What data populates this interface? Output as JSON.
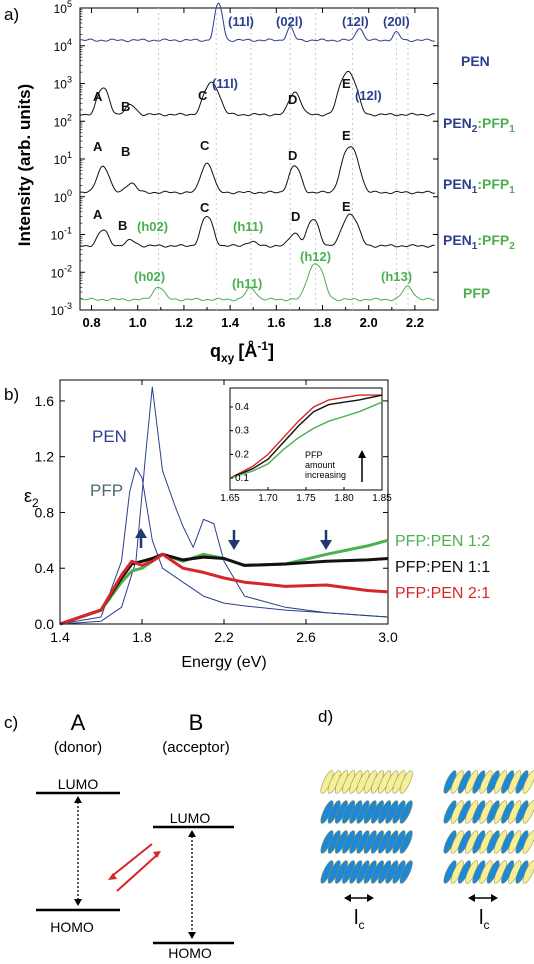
{
  "colors": {
    "pen": "#2b3f8f",
    "pfp": "#4caf50",
    "black": "#111111",
    "red": "#d62728",
    "arrow_dark": "#1f3a6e",
    "grid": "#c8c8c8"
  },
  "panel_a": {
    "label": "a)",
    "ylabel": "Intensity (arb. units)",
    "xlabel_main": "q",
    "xlabel_sub": "xy",
    "xlabel_unit": "[Å",
    "xlabel_exp": "-1",
    "xlabel_end": "]",
    "xticks": [
      "0.8",
      "1.0",
      "1.2",
      "1.4",
      "1.6",
      "1.8",
      "2.0",
      "2.2"
    ],
    "ytick_base": [
      "10",
      "10",
      "10",
      "10",
      "10",
      "10",
      "10",
      "10",
      "10"
    ],
    "ytick_exp": [
      "5",
      "4",
      "3",
      "2",
      "1",
      "0",
      "-1",
      "-2",
      "-3"
    ],
    "gridlines_q": [
      1.09,
      1.34,
      1.49,
      1.66,
      1.77,
      1.93,
      2.12,
      2.17
    ],
    "curve_labels": [
      {
        "text": "PEN",
        "color": "pen"
      },
      {
        "a": "PEN",
        "a_sub": "2",
        "b": ":PFP",
        "b_sub": "1"
      },
      {
        "a": "PEN",
        "a_sub": "1",
        "b": ":PFP",
        "b_sub": "1"
      },
      {
        "a": "PEN",
        "a_sub": "1",
        "b": ":PFP",
        "b_sub": "2"
      },
      {
        "text": "PFP",
        "color": "pfp"
      }
    ],
    "peak_labels_pen": [
      "(11l)",
      "(02l)",
      "(12l)",
      "(20l)"
    ],
    "peak_labels_mix2": [
      "A",
      "B",
      "C",
      "(11l)",
      "D",
      "E",
      "(12l)"
    ],
    "peak_labels_mix1": [
      "A",
      "B",
      "C",
      "D",
      "E"
    ],
    "peak_labels_mixp": [
      "A",
      "B",
      "(h02)",
      "C",
      "(h11)",
      "D",
      "E"
    ],
    "peak_labels_pfp": [
      "(h02)",
      "(h11)",
      "(h12)",
      "(h13)"
    ]
  },
  "panel_b": {
    "label": "b)",
    "ylabel": "ε",
    "ylabel_sub": "2",
    "xlabel": "Energy (eV)",
    "xticks": [
      "1.4",
      "1.8",
      "2.2",
      "2.6",
      "3.0"
    ],
    "yticks": [
      "0.0",
      "0.4",
      "0.8",
      "1.2",
      "1.6"
    ],
    "pen_label": "PEN",
    "pfp_label": "PFP",
    "legend": [
      "PFP:PEN 1:2",
      "PFP:PEN 1:1",
      "PFP:PEN 2:1"
    ],
    "inset": {
      "xticks": [
        "1.65",
        "1.70",
        "1.75",
        "1.80",
        "1.85"
      ],
      "yticks": [
        "0.1",
        "0.2",
        "0.3",
        "0.4"
      ],
      "annotation": [
        "PFP",
        "amount",
        "increasing"
      ]
    }
  },
  "panel_c": {
    "label": "c)",
    "a_title": "A",
    "a_sub": "(donor)",
    "b_title": "B",
    "b_sub": "(acceptor)",
    "lumo": "LUMO",
    "homo": "HOMO"
  },
  "panel_d": {
    "label": "d)",
    "lc_main": "l",
    "lc_sub": "c"
  },
  "chart_data": [
    {
      "type": "line",
      "xlabel": "q_xy [Å^-1]",
      "ylabel": "Intensity (arb. units)",
      "yscale": "log",
      "xlim": [
        0.75,
        2.3
      ],
      "ylim": [
        0.001,
        100000
      ],
      "series": [
        {
          "name": "PEN",
          "baseline": 14000,
          "peaks": [
            [
              1.35,
              9
            ],
            [
              1.66,
              2.2
            ],
            [
              1.96,
              2.2
            ],
            [
              2.12,
              1.6
            ]
          ]
        },
        {
          "name": "PEN2:PFP1",
          "baseline": 150,
          "peaks": [
            [
              0.85,
              5
            ],
            [
              0.97,
              1.8
            ],
            [
              1.32,
              7
            ],
            [
              1.68,
              4
            ],
            [
              1.91,
              14
            ]
          ]
        },
        {
          "name": "PEN1:PFP1",
          "baseline": 1.3,
          "peaks": [
            [
              0.85,
              5
            ],
            [
              0.97,
              1.8
            ],
            [
              1.3,
              6
            ],
            [
              1.68,
              5
            ],
            [
              1.92,
              16
            ]
          ]
        },
        {
          "name": "PEN1:PFP2",
          "baseline": 0.05,
          "peaks": [
            [
              0.85,
              2.6
            ],
            [
              0.97,
              1.4
            ],
            [
              1.3,
              6
            ],
            [
              1.49,
              1.3
            ],
            [
              1.68,
              2.2
            ],
            [
              1.76,
              5
            ],
            [
              1.92,
              7
            ]
          ]
        },
        {
          "name": "PFP",
          "baseline": 0.0019,
          "peaks": [
            [
              1.09,
              2.2
            ],
            [
              1.49,
              2
            ],
            [
              1.77,
              9
            ],
            [
              2.17,
              2.2
            ]
          ]
        }
      ]
    },
    {
      "type": "line",
      "xlabel": "Energy (eV)",
      "ylabel": "ε2",
      "xlim": [
        1.4,
        3.0
      ],
      "ylim": [
        0,
        1.75
      ],
      "series": [
        {
          "name": "PEN",
          "x": [
            1.4,
            1.6,
            1.7,
            1.77,
            1.82,
            1.85,
            1.9,
            1.96,
            2.0,
            2.05,
            2.1,
            2.15,
            2.2,
            2.3,
            2.5,
            2.7,
            3.0
          ],
          "y": [
            0.0,
            0.02,
            0.12,
            0.45,
            1.25,
            1.7,
            1.1,
            0.85,
            0.7,
            0.55,
            0.75,
            0.72,
            0.45,
            0.2,
            0.12,
            0.08,
            0.05
          ]
        },
        {
          "name": "PFP",
          "x": [
            1.4,
            1.6,
            1.7,
            1.74,
            1.77,
            1.8,
            1.85,
            1.9,
            2.0,
            2.1,
            2.2,
            2.3,
            2.5,
            2.7,
            3.0
          ],
          "y": [
            0.0,
            0.05,
            0.45,
            0.95,
            1.12,
            1.05,
            0.6,
            0.4,
            0.3,
            0.2,
            0.15,
            0.13,
            0.1,
            0.08,
            0.05
          ]
        },
        {
          "name": "PFP:PEN 1:2",
          "x": [
            1.4,
            1.6,
            1.7,
            1.75,
            1.8,
            1.85,
            1.9,
            2.0,
            2.1,
            2.2,
            2.3,
            2.5,
            2.7,
            2.9,
            3.0
          ],
          "y": [
            0.0,
            0.1,
            0.3,
            0.38,
            0.4,
            0.45,
            0.5,
            0.45,
            0.5,
            0.47,
            0.42,
            0.43,
            0.5,
            0.56,
            0.6
          ]
        },
        {
          "name": "PFP:PEN 1:1",
          "x": [
            1.4,
            1.6,
            1.7,
            1.75,
            1.8,
            1.85,
            1.9,
            2.0,
            2.1,
            2.2,
            2.3,
            2.5,
            2.7,
            2.9,
            3.0
          ],
          "y": [
            0.0,
            0.1,
            0.33,
            0.43,
            0.45,
            0.47,
            0.5,
            0.46,
            0.48,
            0.47,
            0.42,
            0.43,
            0.45,
            0.46,
            0.47
          ]
        },
        {
          "name": "PFP:PEN 2:1",
          "x": [
            1.4,
            1.6,
            1.7,
            1.75,
            1.8,
            1.85,
            1.9,
            2.0,
            2.1,
            2.2,
            2.3,
            2.5,
            2.7,
            2.9,
            3.0
          ],
          "y": [
            0.0,
            0.1,
            0.35,
            0.45,
            0.42,
            0.45,
            0.5,
            0.4,
            0.37,
            0.33,
            0.3,
            0.27,
            0.28,
            0.24,
            0.23
          ]
        }
      ]
    },
    {
      "type": "line",
      "title": "inset",
      "xlim": [
        1.65,
        1.85
      ],
      "ylim": [
        0.05,
        0.48
      ],
      "series": [
        {
          "name": "PFP:PEN 2:1",
          "x": [
            1.65,
            1.68,
            1.7,
            1.72,
            1.74,
            1.76,
            1.78,
            1.8,
            1.82,
            1.85
          ],
          "y": [
            0.1,
            0.15,
            0.2,
            0.27,
            0.34,
            0.4,
            0.43,
            0.44,
            0.45,
            0.45
          ]
        },
        {
          "name": "PFP:PEN 1:1",
          "x": [
            1.65,
            1.68,
            1.7,
            1.72,
            1.74,
            1.76,
            1.78,
            1.8,
            1.82,
            1.85
          ],
          "y": [
            0.1,
            0.14,
            0.18,
            0.25,
            0.32,
            0.38,
            0.41,
            0.42,
            0.43,
            0.45
          ]
        },
        {
          "name": "PFP:PEN 1:2",
          "x": [
            1.65,
            1.68,
            1.7,
            1.72,
            1.74,
            1.76,
            1.78,
            1.8,
            1.82,
            1.85
          ],
          "y": [
            0.1,
            0.13,
            0.16,
            0.22,
            0.27,
            0.31,
            0.34,
            0.36,
            0.38,
            0.42
          ]
        }
      ]
    }
  ]
}
